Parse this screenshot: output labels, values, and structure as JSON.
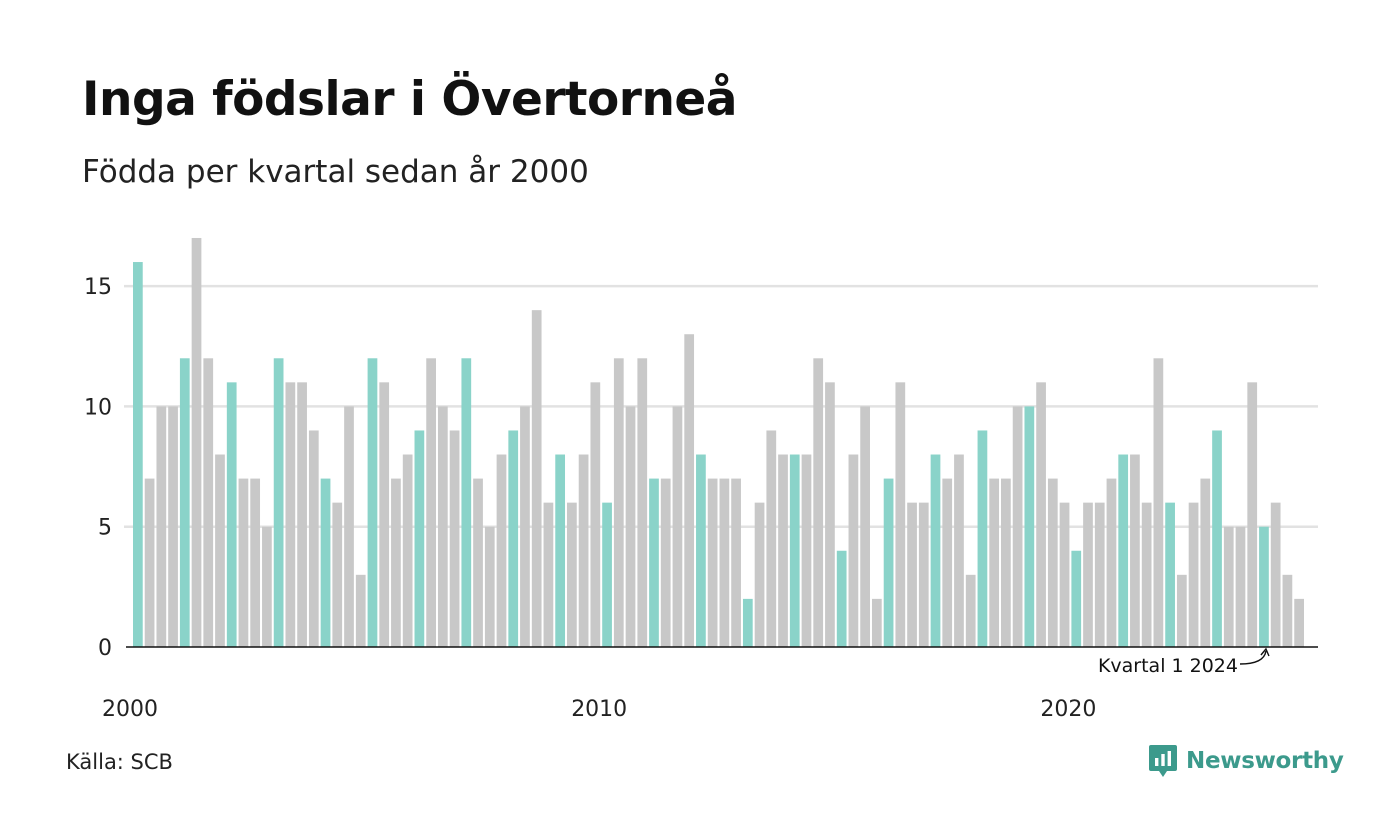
{
  "title": "Inga födslar i Övertorneå",
  "subtitle": "Födda per kvartal sedan år 2000",
  "source": "Källa: SCB",
  "brand": {
    "name": "Newsworthy",
    "icon": "newsworthy-logo-icon",
    "color": "#3c9a8c"
  },
  "colors": {
    "highlight": "#8ad3c9",
    "bar": "#c8c8c8",
    "grid": "#e2e2e2",
    "axis": "#111111"
  },
  "chart_data": {
    "type": "bar",
    "title": "Inga födslar i Övertorneå",
    "subtitle": "Födda per kvartal sedan år 2000",
    "xlabel": "",
    "ylabel": "",
    "start": {
      "year": 2000,
      "quarter": 1
    },
    "values": [
      16,
      7,
      10,
      10,
      12,
      17,
      12,
      8,
      11,
      7,
      7,
      5,
      12,
      11,
      11,
      9,
      7,
      6,
      10,
      3,
      12,
      11,
      7,
      8,
      9,
      12,
      10,
      9,
      12,
      7,
      5,
      8,
      9,
      10,
      14,
      6,
      8,
      6,
      8,
      11,
      6,
      12,
      10,
      12,
      7,
      7,
      10,
      13,
      8,
      7,
      7,
      7,
      2,
      6,
      9,
      8,
      8,
      8,
      12,
      11,
      4,
      8,
      10,
      2,
      7,
      11,
      6,
      6,
      8,
      7,
      8,
      3,
      9,
      7,
      7,
      10,
      10,
      11,
      7,
      6,
      4,
      6,
      6,
      7,
      8,
      8,
      6,
      12,
      6,
      3,
      6,
      7,
      9,
      5,
      5,
      11,
      5,
      6,
      3,
      2
    ],
    "highlight": "quarter 1 of each year",
    "yticks": [
      0,
      5,
      10,
      15
    ],
    "ylim": [
      0,
      17
    ],
    "xticks": [
      2000,
      2010,
      2020
    ],
    "grid": true,
    "annotation": {
      "text": "Kvartal 1 2024"
    }
  }
}
